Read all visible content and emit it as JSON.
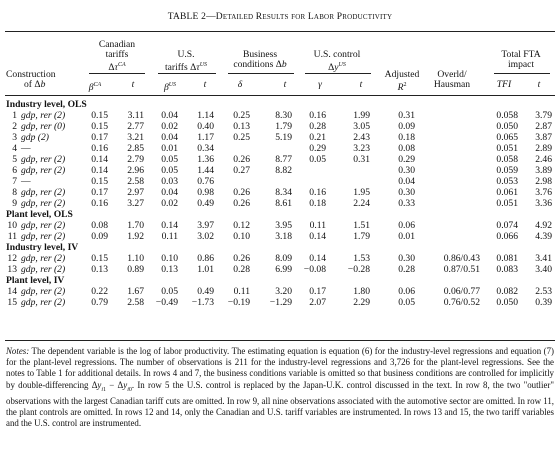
{
  "title_prefix": "TABLE 2—",
  "title_rest": "Detailed Results for Labor Productivity",
  "headers": {
    "construction_top": "Construction",
    "construction_bot": "of Δb",
    "cdn_1": "Canadian",
    "cdn_2": "tariffs",
    "cdn_3": "Δτ^CA",
    "us_1": "U.S.",
    "us_2": "tariffs Δτ^US",
    "bus_1": "Business",
    "bus_2": "conditions Δb",
    "ctrl_1": "U.S. control",
    "ctrl_2": "Δy^US",
    "adj_1": "Adjusted",
    "adj_2": "R²",
    "overld_1": "Overld/",
    "overld_2": "Hausman",
    "fta_1": "Total FTA",
    "fta_2": "impact",
    "sub_bca": "β^CA",
    "sub_t1": "t",
    "sub_bus": "β^US",
    "sub_t2": "t",
    "sub_delta": "δ",
    "sub_t3": "t",
    "sub_gamma": "γ",
    "sub_t4": "t",
    "sub_tfi": "TFI",
    "sub_t5": "t"
  },
  "sections": [
    "Industry level, OLS",
    "Plant level, OLS",
    "Industry level, IV",
    "Plant level, IV"
  ],
  "rows": [
    {
      "n": "1",
      "c": "gdp, rer (2)",
      "b1": "0.15",
      "t1": "3.11",
      "b2": "0.04",
      "t2": "1.14",
      "d": "0.25",
      "t3": "8.30",
      "g": "0.16",
      "t4": "1.99",
      "r2": "0.31",
      "oh": "",
      "tfi": "0.058",
      "t5": "3.79"
    },
    {
      "n": "2",
      "c": "gdp, rer (0)",
      "b1": "0.15",
      "t1": "2.77",
      "b2": "0.02",
      "t2": "0.40",
      "d": "0.13",
      "t3": "1.79",
      "g": "0.28",
      "t4": "3.05",
      "r2": "0.09",
      "oh": "",
      "tfi": "0.050",
      "t5": "2.87"
    },
    {
      "n": "3",
      "c": "gdp (2)",
      "b1": "0.17",
      "t1": "3.21",
      "b2": "0.04",
      "t2": "1.17",
      "d": "0.25",
      "t3": "5.19",
      "g": "0.21",
      "t4": "2.43",
      "r2": "0.18",
      "oh": "",
      "tfi": "0.065",
      "t5": "3.87"
    },
    {
      "n": "4",
      "c": "—",
      "b1": "0.16",
      "t1": "2.85",
      "b2": "0.01",
      "t2": "0.34",
      "d": "",
      "t3": "",
      "g": "0.29",
      "t4": "3.23",
      "r2": "0.08",
      "oh": "",
      "tfi": "0.051",
      "t5": "2.89"
    },
    {
      "n": "5",
      "c": "gdp, rer (2)",
      "b1": "0.14",
      "t1": "2.79",
      "b2": "0.05",
      "t2": "1.36",
      "d": "0.26",
      "t3": "8.77",
      "g": "0.05",
      "t4": "0.31",
      "r2": "0.29",
      "oh": "",
      "tfi": "0.058",
      "t5": "2.46"
    },
    {
      "n": "6",
      "c": "gdp, rer (2)",
      "b1": "0.14",
      "t1": "2.96",
      "b2": "0.05",
      "t2": "1.44",
      "d": "0.27",
      "t3": "8.82",
      "g": "",
      "t4": "",
      "r2": "0.30",
      "oh": "",
      "tfi": "0.059",
      "t5": "3.89"
    },
    {
      "n": "7",
      "c": "—",
      "b1": "0.15",
      "t1": "2.58",
      "b2": "0.03",
      "t2": "0.76",
      "d": "",
      "t3": "",
      "g": "",
      "t4": "",
      "r2": "0.04",
      "oh": "",
      "tfi": "0.053",
      "t5": "2.98"
    },
    {
      "n": "8",
      "c": "gdp, rer (2)",
      "b1": "0.17",
      "t1": "2.97",
      "b2": "0.04",
      "t2": "0.98",
      "d": "0.26",
      "t3": "8.34",
      "g": "0.16",
      "t4": "1.95",
      "r2": "0.30",
      "oh": "",
      "tfi": "0.061",
      "t5": "3.76"
    },
    {
      "n": "9",
      "c": "gdp, rer (2)",
      "b1": "0.16",
      "t1": "3.27",
      "b2": "0.02",
      "t2": "0.49",
      "d": "0.26",
      "t3": "8.61",
      "g": "0.18",
      "t4": "2.24",
      "r2": "0.33",
      "oh": "",
      "tfi": "0.051",
      "t5": "3.36"
    },
    {
      "n": "10",
      "c": "gdp, rer (2)",
      "b1": "0.08",
      "t1": "1.70",
      "b2": "0.14",
      "t2": "3.97",
      "d": "0.12",
      "t3": "3.95",
      "g": "0.11",
      "t4": "1.51",
      "r2": "0.06",
      "oh": "",
      "tfi": "0.074",
      "t5": "4.92"
    },
    {
      "n": "11",
      "c": "gdp, rer (2)",
      "b1": "0.09",
      "t1": "1.92",
      "b2": "0.11",
      "t2": "3.02",
      "d": "0.10",
      "t3": "3.18",
      "g": "0.14",
      "t4": "1.79",
      "r2": "0.01",
      "oh": "",
      "tfi": "0.066",
      "t5": "4.39"
    },
    {
      "n": "12",
      "c": "gdp, rer (2)",
      "b1": "0.15",
      "t1": "1.10",
      "b2": "0.10",
      "t2": "0.86",
      "d": "0.26",
      "t3": "8.09",
      "g": "0.14",
      "t4": "1.53",
      "r2": "0.30",
      "oh": "0.86/0.43",
      "tfi": "0.081",
      "t5": "3.41"
    },
    {
      "n": "13",
      "c": "gdp, rer (2)",
      "b1": "0.13",
      "t1": "0.89",
      "b2": "0.13",
      "t2": "1.01",
      "d": "0.28",
      "t3": "6.99",
      "g": "−0.08",
      "t4": "−0.28",
      "r2": "0.28",
      "oh": "0.87/0.51",
      "tfi": "0.083",
      "t5": "3.40"
    },
    {
      "n": "14",
      "c": "gdp, rer (2)",
      "b1": "0.22",
      "t1": "1.67",
      "b2": "0.05",
      "t2": "0.49",
      "d": "0.11",
      "t3": "3.20",
      "g": "0.17",
      "t4": "1.80",
      "r2": "0.06",
      "oh": "0.06/0.77",
      "tfi": "0.082",
      "t5": "2.53"
    },
    {
      "n": "15",
      "c": "gdp, rer (2)",
      "b1": "0.79",
      "t1": "2.58",
      "b2": "−0.49",
      "t2": "−1.73",
      "d": "−0.19",
      "t3": "−1.29",
      "g": "2.07",
      "t4": "2.29",
      "r2": "0.05",
      "oh": "0.76/0.52",
      "tfi": "0.050",
      "t5": "0.39"
    }
  ],
  "notes": "Notes: The dependent variable is the log of labor productivity. The estimating equation is equation (6) for the industry-level regressions and equation (7) for the plant-level regressions. The number of observations is 211 for the industry-level regressions and 3,726 for the plant-level regressions. See the notes to Table 1 for additional details. In rows 4 and 7, the business conditions variable is omitted so that business conditions are controlled for implicitly by double-differencing Δy_i1 − Δy_i0. In row 5 the U.S. control is replaced by the Japan-U.K. control discussed in the text. In row 8, the two \"outlier\" observations with the largest Canadian tariff cuts are omitted. In row 9, all nine observations associated with the automotive sector are omitted. In row 11, the plant controls are omitted. In rows 12 and 14, only the Canadian and U.S. tariff variables are instrumented. In rows 13 and 15, the two tariff variables and the U.S. control are instrumented."
}
